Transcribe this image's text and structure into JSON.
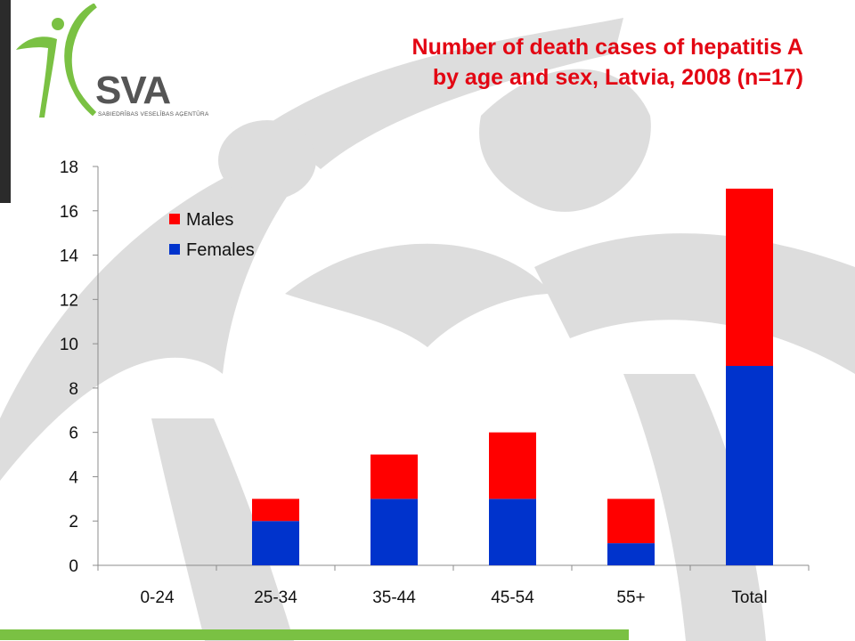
{
  "header": {
    "title_line1": "Number of death cases of hepatitis A",
    "title_line2": "by age and sex, Latvia, 2008 (n=17)"
  },
  "logo": {
    "brand": "SVA",
    "subtitle": "SABIEDRĪBAS VESELĪBAS AĢENTŪRA",
    "colors": {
      "figure": "#7ac143",
      "text": "#555555"
    }
  },
  "chart_data": {
    "type": "bar",
    "stacked": true,
    "title": "Number of death cases of hepatitis A by age and sex, Latvia, 2008 (n=17)",
    "categories": [
      "0-24",
      "25-34",
      "35-44",
      "45-54",
      "55+",
      "Total"
    ],
    "series": [
      {
        "name": "Females",
        "color": "#0033cc",
        "values": [
          0,
          2,
          3,
          3,
          1,
          9
        ]
      },
      {
        "name": "Males",
        "color": "#ff0000",
        "values": [
          0,
          1,
          2,
          3,
          2,
          8
        ]
      }
    ],
    "legend_order": [
      "Males",
      "Females"
    ],
    "legend_position": "top-left",
    "ylim": [
      0,
      18
    ],
    "yticks": [
      0,
      2,
      4,
      6,
      8,
      10,
      12,
      14,
      16,
      18
    ],
    "xlabel": "",
    "ylabel": "",
    "grid": false
  }
}
